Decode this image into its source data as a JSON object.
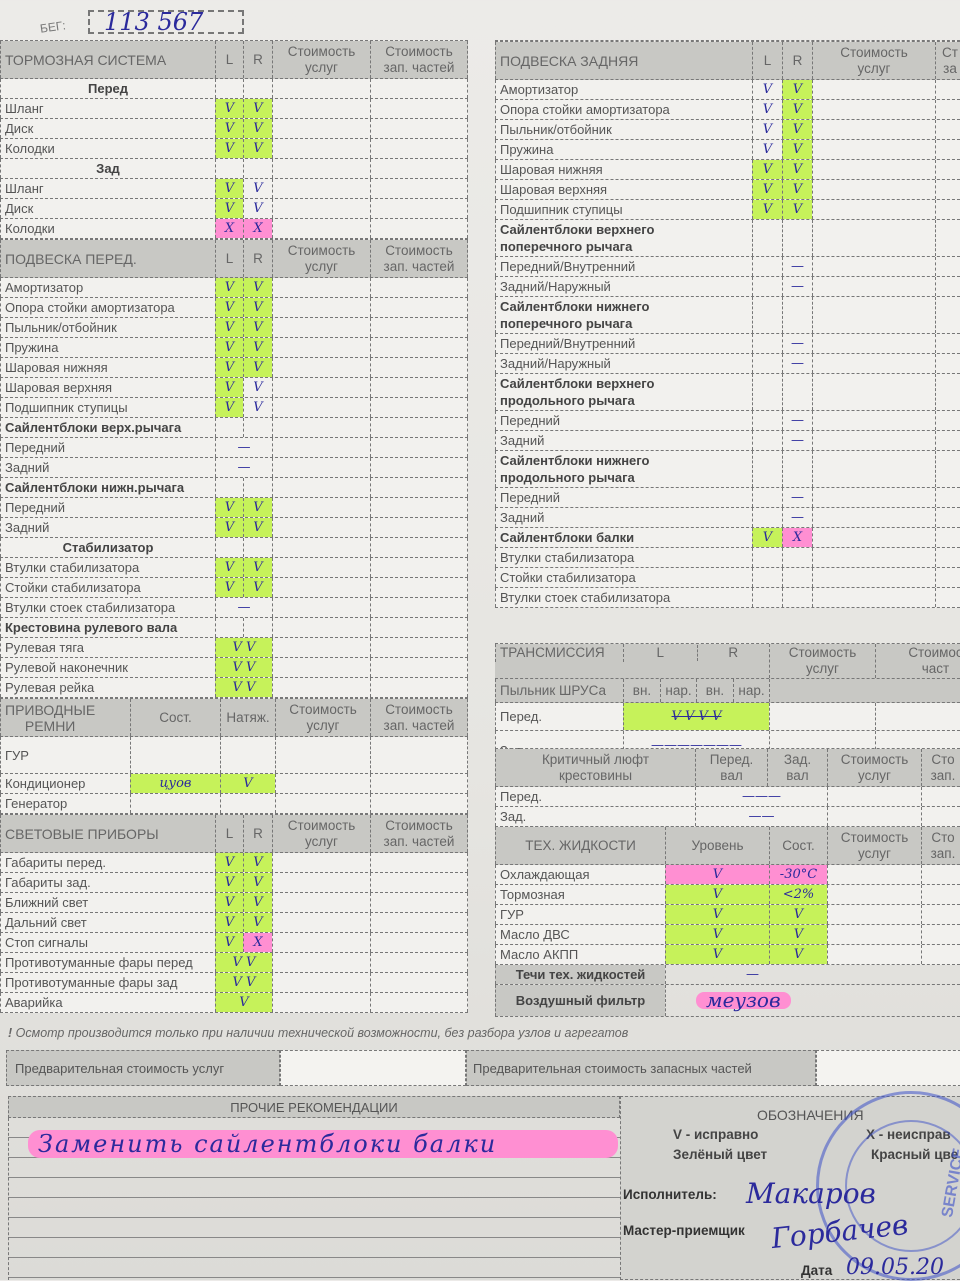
{
  "mileage": {
    "label": "БЕГ:",
    "value": "113 567"
  },
  "left": [
    {
      "header": [
        "ТОРМОЗНАЯ СИСТЕМА",
        "L",
        "R",
        "Стоимость\nуслуг",
        "Стоимость\nзап. частей"
      ],
      "rows": [
        {
          "label": "Перед",
          "style": "subheader"
        },
        {
          "label": "Шланг",
          "l": "V",
          "r": "V",
          "hl_l": "green",
          "hl_r": "green"
        },
        {
          "label": "Диск",
          "l": "V",
          "r": "V",
          "hl_l": "green",
          "hl_r": "green"
        },
        {
          "label": "Колодки",
          "l": "V",
          "r": "V",
          "hl_l": "green",
          "hl_r": "green"
        },
        {
          "label": "Зад",
          "style": "subheader"
        },
        {
          "label": "Шланг",
          "l": "V",
          "r": "V",
          "hl_l": "green"
        },
        {
          "label": "Диск",
          "l": "V",
          "r": "V",
          "hl_l": "green"
        },
        {
          "label": "Колодки",
          "l": "X",
          "r": "X",
          "hl_l": "pink",
          "hl_r": "pink"
        }
      ]
    },
    {
      "header": [
        "ПОДВЕСКА ПЕРЕД.",
        "L",
        "R",
        "Стоимость\nуслуг",
        "Стоимость\nзап. частей"
      ],
      "rows": [
        {
          "label": "Амортизатор",
          "l": "V",
          "r": "V",
          "hl_l": "green",
          "hl_r": "green"
        },
        {
          "label": "Опора стойки амортизатора",
          "l": "V",
          "r": "V",
          "hl_l": "green",
          "hl_r": "green"
        },
        {
          "label": "Пыльник/отбойник",
          "l": "V",
          "r": "V",
          "hl_l": "green",
          "hl_r": "green"
        },
        {
          "label": "Пружина",
          "l": "V",
          "r": "V",
          "hl_l": "green",
          "hl_r": "green"
        },
        {
          "label": "Шаровая нижняя",
          "l": "V",
          "r": "V",
          "hl_l": "green",
          "hl_r": "green"
        },
        {
          "label": "Шаровая верхняя",
          "l": "V",
          "r": "V",
          "hl_l": "green"
        },
        {
          "label": "Подшипник ступицы",
          "l": "V",
          "r": "V",
          "hl_l": "green"
        },
        {
          "label": "Сайлентблоки верх.рычага",
          "style": "bold"
        },
        {
          "label": "Передний",
          "lr": "—"
        },
        {
          "label": "Задний",
          "lr": "—"
        },
        {
          "label": "Сайлентблоки нижн.рычага",
          "style": "bold"
        },
        {
          "label": "Передний",
          "l": "V",
          "r": "V",
          "hl_l": "green",
          "hl_r": "green"
        },
        {
          "label": "Задний",
          "l": "V",
          "r": "V",
          "hl_l": "green",
          "hl_r": "green"
        },
        {
          "label": "Стабилизатор",
          "style": "subheader"
        },
        {
          "label": "Втулки стабилизатора",
          "l": "V",
          "r": "V",
          "hl_l": "green",
          "hl_r": "green"
        },
        {
          "label": "Стойки стабилизатора",
          "l": "V",
          "r": "V",
          "hl_l": "green",
          "hl_r": "green"
        },
        {
          "label": "Втулки стоек стабилизатора",
          "lr": "—"
        },
        {
          "label": "Крестовина рулевого вала",
          "style": "bold"
        },
        {
          "label": "Рулевая тяга",
          "lr": "V V",
          "hl_lr": "green"
        },
        {
          "label": "Рулевой наконечник",
          "lr": "V V",
          "hl_lr": "green"
        },
        {
          "label": "Рулевая рейка",
          "lr": "V V",
          "hl_lr": "green"
        }
      ]
    },
    {
      "header": [
        "ПРИВОДНЫЕ\nРЕМНИ",
        "Сост.",
        "Натяж.",
        "Стоимость\nуслуг",
        "Стоимость\nзап. частей"
      ],
      "belts": true,
      "rows": [
        {
          "label": "ГУР"
        },
        {
          "label": "Кондиционер",
          "state": "цуов",
          "tension": "V",
          "hl": "green"
        },
        {
          "label": "Генератор"
        }
      ]
    },
    {
      "header": [
        "СВЕТОВЫЕ ПРИБОРЫ",
        "L",
        "R",
        "Стоимость\nуслуг",
        "Стоимость\nзап. частей"
      ],
      "rows": [
        {
          "label": "Габариты перед.",
          "l": "V",
          "r": "V",
          "hl_l": "green",
          "hl_r": "green"
        },
        {
          "label": "Габариты зад.",
          "l": "V",
          "r": "V",
          "hl_l": "green",
          "hl_r": "green"
        },
        {
          "label": "Ближний свет",
          "l": "V",
          "r": "V",
          "hl_l": "green",
          "hl_r": "green"
        },
        {
          "label": "Дальний свет",
          "l": "V",
          "r": "V",
          "hl_l": "green",
          "hl_r": "green"
        },
        {
          "label": "Стоп сигналы",
          "l": "V",
          "r": "X",
          "hl_l": "green",
          "hl_r": "pink"
        },
        {
          "label": "Противотуманные фары перед",
          "lr": "V V",
          "hl_lr": "green"
        },
        {
          "label": "Противотуманные фары зад",
          "lr": "V V",
          "hl_lr": "green"
        },
        {
          "label": "Аварийка",
          "lr": "V",
          "hl_lr": "green"
        }
      ]
    }
  ],
  "right": {
    "suspension": {
      "header": [
        "ПОДВЕСКА ЗАДНЯЯ",
        "L",
        "R",
        "Стоимость\nуслуг",
        "Ст\nза"
      ],
      "rows": [
        {
          "label": "Амортизатор",
          "l": "V",
          "r": "V",
          "hl_r": "green"
        },
        {
          "label": "Опора стойки амортизатора",
          "l": "V",
          "r": "V",
          "hl_r": "green"
        },
        {
          "label": "Пыльник/отбойник",
          "l": "V",
          "r": "V",
          "hl_r": "green"
        },
        {
          "label": "Пружина",
          "l": "V",
          "r": "V",
          "hl_r": "green"
        },
        {
          "label": "Шаровая нижняя",
          "l": "V",
          "r": "V",
          "hl_l": "green",
          "hl_r": "green"
        },
        {
          "label": "Шаровая верхняя",
          "l": "V",
          "r": "V",
          "hl_l": "green",
          "hl_r": "green"
        },
        {
          "label": "Подшипник ступицы",
          "l": "V",
          "r": "V",
          "hl_l": "green",
          "hl_r": "green"
        },
        {
          "label": "Сайлентблоки верхнего\nпоперечного рычага",
          "style": "bold"
        },
        {
          "label": "Передний/Внутренний",
          "r": "—"
        },
        {
          "label": "Задний/Наружный",
          "r": "—"
        },
        {
          "label": "Сайлентблоки нижнего\nпоперечного рычага",
          "style": "bold"
        },
        {
          "label": "Передний/Внутренний",
          "r": "—"
        },
        {
          "label": "Задний/Наружный",
          "r": "—"
        },
        {
          "label": "Сайлентблоки верхнего\nпродольного рычага",
          "style": "bold"
        },
        {
          "label": "Передний",
          "r": "—"
        },
        {
          "label": "Задний",
          "r": "—"
        },
        {
          "label": "Сайлентблоки нижнего\nпродольного рычага",
          "style": "bold"
        },
        {
          "label": "Передний",
          "r": "—"
        },
        {
          "label": "Задний",
          "r": "—"
        },
        {
          "label": "Сайлентблоки балки",
          "style": "bold",
          "l": "V",
          "r": "X",
          "hl_l": "green",
          "hl_r": "pink"
        },
        {
          "label": "Втулки стабилизатора"
        },
        {
          "label": "Стойки стабилизатора"
        },
        {
          "label": "Втулки стоек стабилизатора"
        }
      ]
    },
    "transmission": {
      "title": "ТРАНСМИССИЯ",
      "L": "L",
      "R": "R",
      "sub": "Пыльник ШРУСа",
      "vn": "вн.",
      "nar": "нар.",
      "cost_services": "Стоимость\nуслуг",
      "cost_parts": "Стоимос\nчаст",
      "front": {
        "label": "Перед.",
        "marks": "V V V V",
        "hl": "green"
      },
      "rear": {
        "label": "Зад.",
        "marks": "———————"
      }
    },
    "crosspiece": {
      "title": "Критичный люфт\nкрестовины",
      "front_shaft": "Перед.\nвал",
      "rear_shaft": "Зад.\nвал",
      "cost_services": "Стоимость\nуслуг",
      "cost_parts": "Сто\nзап.",
      "rows": [
        {
          "label": "Перед.",
          "mark": "———"
        },
        {
          "label": "Зад.",
          "mark": "——"
        }
      ]
    },
    "fluids": {
      "title": "ТЕХ. ЖИДКОСТИ",
      "level": "Уровень",
      "state": "Сост.",
      "cost_services": "Стоимость\nуслуг",
      "cost_parts": "Сто\nзап.",
      "rows": [
        {
          "label": "Охлаждающая",
          "level": "V",
          "state": "-30°C",
          "hl": "pink"
        },
        {
          "label": "Тормозная",
          "level": "V",
          "state": "<2%",
          "hl": "green"
        },
        {
          "label": "ГУР",
          "level": "V",
          "state": "V",
          "hl": "green"
        },
        {
          "label": "Масло ДВС",
          "level": "V",
          "state": "V",
          "hl": "green"
        },
        {
          "label": "Масло АКПП",
          "level": "V",
          "state": "V",
          "hl": "green"
        }
      ],
      "leaks": {
        "label": "Течи тех. жидкостей",
        "mark": "—"
      },
      "air_filter": {
        "label": "Воздушный фильтр",
        "value": "меузов"
      }
    }
  },
  "footer": {
    "note": "Осмотр производится только при наличии технической возможности, без разбора узлов и агрегатов",
    "prelim_services": "Предварительная стоимость услуг",
    "prelim_parts": "Предварительная стоимость запасных частей",
    "recommendations_title": "ПРОЧИЕ РЕКОМЕНДАЦИИ",
    "recommendation": "Заменить сайлентблоки балки",
    "legend_title": "ОБОЗНАЧЕНИЯ",
    "legend_ok": "V - исправно",
    "legend_bad": "X - неисправ",
    "legend_green": "Зелёный цвет",
    "legend_red": "Красный цве",
    "executor_label": "Исполнитель:",
    "executor_sign": "Макаров",
    "master_label": "Мастер-приемщик",
    "master_sign": "Горбачев",
    "date_label": "Дата",
    "date_value": "09.05.20",
    "stamp_text": "SERVICE"
  },
  "colors": {
    "green": "#c6f25a",
    "pink": "#ff8fd2",
    "ink": "#2b2a9c"
  }
}
